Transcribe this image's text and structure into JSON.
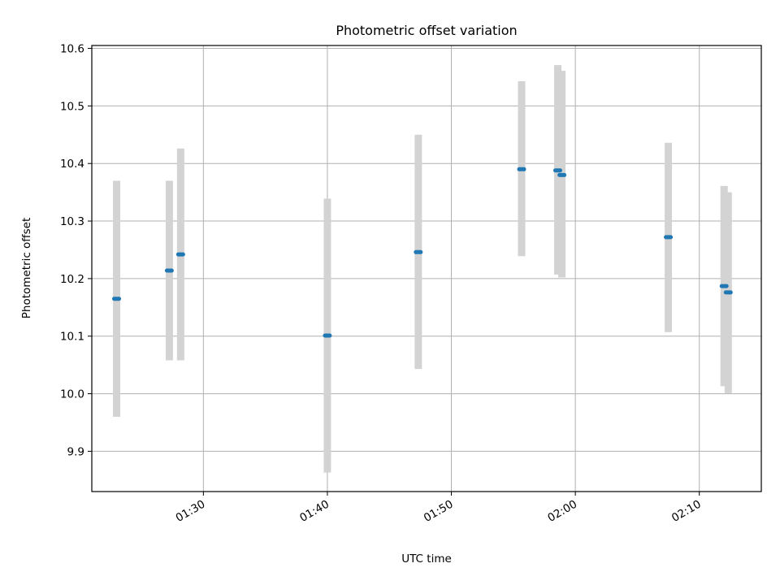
{
  "chart_data": {
    "type": "scatter",
    "title": "Photometric offset variation",
    "xlabel": "UTC time",
    "ylabel": "Photometric offset",
    "x_axis": {
      "kind": "time",
      "range": [
        "01:21",
        "02:15"
      ],
      "tick_labels": [
        "01:30",
        "01:40",
        "01:50",
        "02:00",
        "02:10"
      ]
    },
    "y_axis": {
      "range": [
        9.83,
        10.605
      ],
      "ticks": [
        9.9,
        10.0,
        10.1,
        10.2,
        10.3,
        10.4,
        10.5,
        10.6
      ],
      "tick_labels": [
        "9.9",
        "10.0",
        "10.1",
        "10.2",
        "10.3",
        "10.4",
        "10.5",
        "10.6"
      ]
    },
    "grid": true,
    "colors": {
      "point": "#1f77b4",
      "errorbar": "#d3d3d3",
      "grid": "#b0b0b0"
    },
    "points": [
      {
        "x": "01:23:00",
        "y": 10.165,
        "y_low": 9.96,
        "y_high": 10.37
      },
      {
        "x": "01:27:15",
        "y": 10.214,
        "y_low": 10.058,
        "y_high": 10.37
      },
      {
        "x": "01:28:10",
        "y": 10.242,
        "y_low": 10.058,
        "y_high": 10.426
      },
      {
        "x": "01:40:00",
        "y": 10.101,
        "y_low": 9.863,
        "y_high": 10.339
      },
      {
        "x": "01:47:20",
        "y": 10.246,
        "y_low": 10.043,
        "y_high": 10.45
      },
      {
        "x": "01:55:40",
        "y": 10.39,
        "y_low": 10.239,
        "y_high": 10.543
      },
      {
        "x": "01:58:35",
        "y": 10.388,
        "y_low": 10.207,
        "y_high": 10.571
      },
      {
        "x": "01:58:55",
        "y": 10.38,
        "y_low": 10.202,
        "y_high": 10.561
      },
      {
        "x": "02:07:30",
        "y": 10.272,
        "y_low": 10.107,
        "y_high": 10.436
      },
      {
        "x": "02:12:00",
        "y": 10.187,
        "y_low": 10.013,
        "y_high": 10.361
      },
      {
        "x": "02:12:20",
        "y": 10.176,
        "y_low": 10.001,
        "y_high": 10.35
      }
    ]
  }
}
